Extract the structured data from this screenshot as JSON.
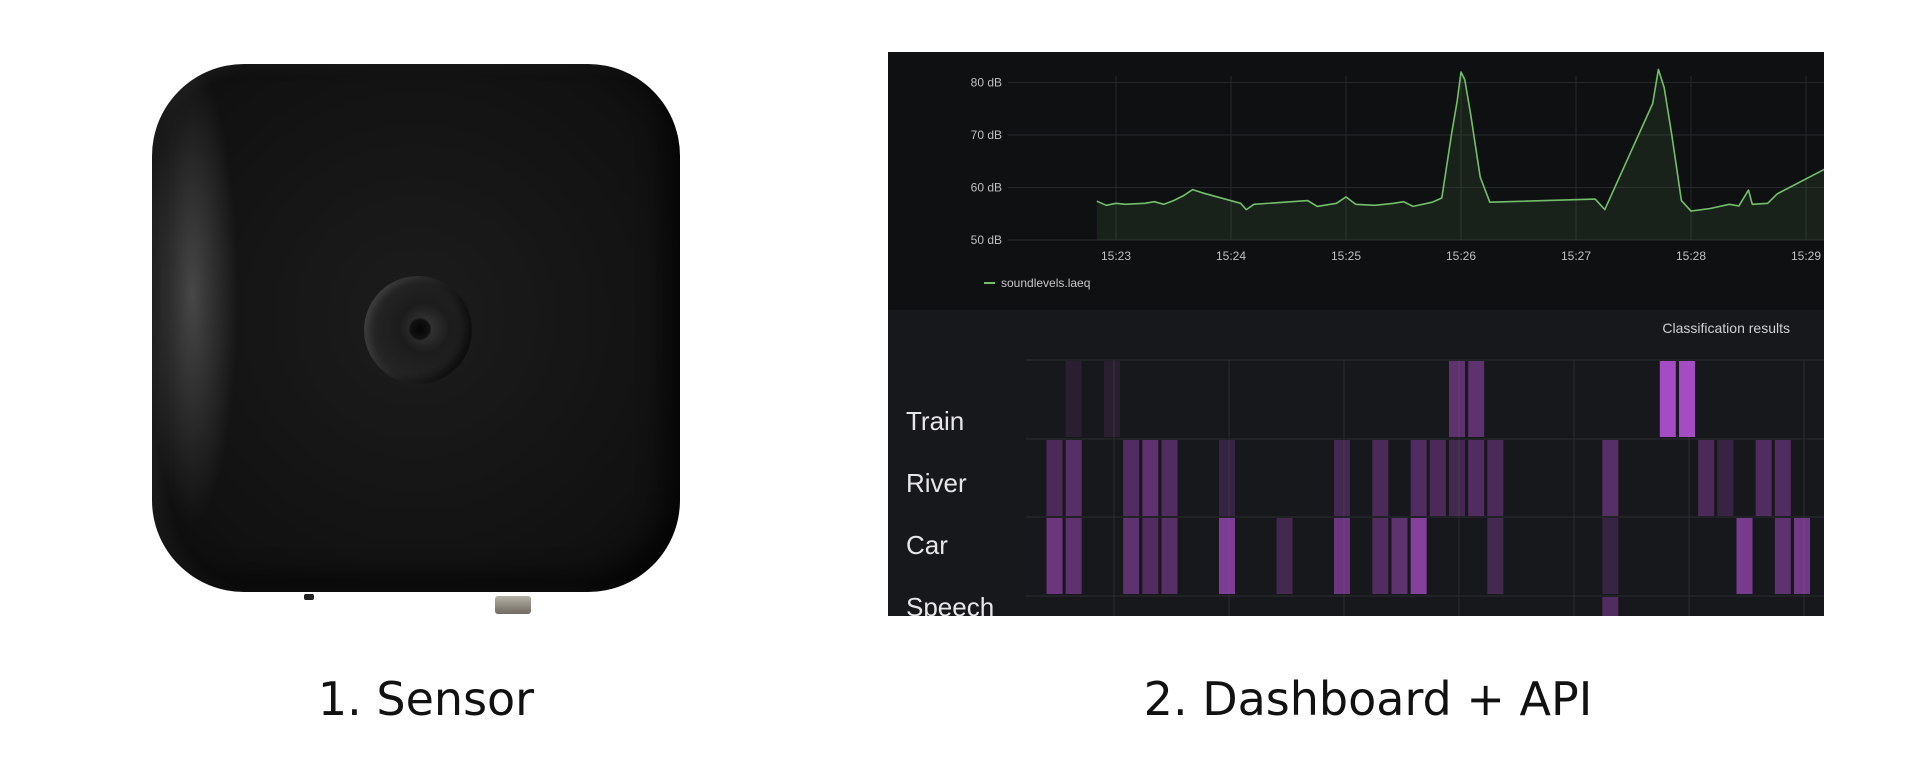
{
  "captions": {
    "sensor": "1. Sensor",
    "dashboard": "2. Dashboard + API"
  },
  "chart_data": [
    {
      "type": "area",
      "x_ticks": [
        "15:23",
        "15:24",
        "15:25",
        "15:26",
        "15:27",
        "15:28",
        "15:29"
      ],
      "y_ticks": [
        "50 dB",
        "60 dB",
        "70 dB",
        "80 dB"
      ],
      "ylim": [
        50,
        82
      ],
      "grid": true,
      "legend": "bottom-left",
      "series": [
        {
          "name": "soundlevels.laeq",
          "color": "#73bf69",
          "points": [
            [
              "15:22:50",
              57.4
            ],
            [
              "15:22:55",
              56.6
            ],
            [
              "15:23:00",
              57.0
            ],
            [
              "15:23:05",
              56.8
            ],
            [
              "15:23:15",
              57.0
            ],
            [
              "15:23:20",
              57.3
            ],
            [
              "15:23:25",
              56.8
            ],
            [
              "15:23:30",
              57.5
            ],
            [
              "15:23:35",
              58.4
            ],
            [
              "15:23:40",
              59.6
            ],
            [
              "15:23:45",
              59.0
            ],
            [
              "15:24:05",
              57.0
            ],
            [
              "15:24:08",
              55.8
            ],
            [
              "15:24:12",
              56.8
            ],
            [
              "15:24:40",
              57.5
            ],
            [
              "15:24:45",
              56.4
            ],
            [
              "15:24:55",
              57.0
            ],
            [
              "15:25:00",
              58.2
            ],
            [
              "15:25:05",
              56.8
            ],
            [
              "15:25:15",
              56.6
            ],
            [
              "15:25:25",
              57.0
            ],
            [
              "15:25:30",
              57.3
            ],
            [
              "15:25:35",
              56.4
            ],
            [
              "15:25:45",
              57.2
            ],
            [
              "15:25:50",
              58.0
            ],
            [
              "15:25:55",
              70.0
            ],
            [
              "15:25:58",
              76.5
            ],
            [
              "15:26:00",
              82.0
            ],
            [
              "15:26:02",
              80.5
            ],
            [
              "15:26:05",
              74.0
            ],
            [
              "15:26:10",
              62.0
            ],
            [
              "15:26:15",
              57.2
            ],
            [
              "15:27:10",
              57.8
            ],
            [
              "15:27:15",
              55.8
            ],
            [
              "15:27:40",
              76.0
            ],
            [
              "15:27:43",
              82.5
            ],
            [
              "15:27:46",
              79.0
            ],
            [
              "15:27:50",
              70.0
            ],
            [
              "15:27:55",
              57.5
            ],
            [
              "15:28:00",
              55.5
            ],
            [
              "15:28:10",
              56.0
            ],
            [
              "15:28:20",
              56.8
            ],
            [
              "15:28:25",
              56.5
            ],
            [
              "15:28:30",
              59.5
            ],
            [
              "15:28:32",
              56.8
            ],
            [
              "15:28:40",
              57.0
            ],
            [
              "15:28:45",
              58.8
            ],
            [
              "15:29:15",
              64.5
            ]
          ]
        }
      ]
    },
    {
      "type": "heatmap",
      "title": "Classification results",
      "rows": [
        "Train",
        "River",
        "Car",
        "Speech"
      ],
      "color": "#b050d0",
      "cells": [
        {
          "row": "Train",
          "time": "15:22:40",
          "intensity": 0.05
        },
        {
          "row": "Train",
          "time": "15:23:00",
          "intensity": 0.05
        },
        {
          "row": "Train",
          "time": "15:26:00",
          "intensity": 0.45
        },
        {
          "row": "Train",
          "time": "15:26:10",
          "intensity": 0.45
        },
        {
          "row": "Train",
          "time": "15:27:50",
          "intensity": 1.0
        },
        {
          "row": "Train",
          "time": "15:28:00",
          "intensity": 1.0
        },
        {
          "row": "River",
          "time": "15:22:30",
          "intensity": 0.3
        },
        {
          "row": "River",
          "time": "15:22:40",
          "intensity": 0.4
        },
        {
          "row": "River",
          "time": "15:23:10",
          "intensity": 0.35
        },
        {
          "row": "River",
          "time": "15:23:20",
          "intensity": 0.45
        },
        {
          "row": "River",
          "time": "15:23:30",
          "intensity": 0.35
        },
        {
          "row": "River",
          "time": "15:24:00",
          "intensity": 0.15
        },
        {
          "row": "River",
          "time": "15:25:00",
          "intensity": 0.25
        },
        {
          "row": "River",
          "time": "15:25:20",
          "intensity": 0.3
        },
        {
          "row": "River",
          "time": "15:25:40",
          "intensity": 0.35
        },
        {
          "row": "River",
          "time": "15:25:50",
          "intensity": 0.3
        },
        {
          "row": "River",
          "time": "15:26:00",
          "intensity": 0.25
        },
        {
          "row": "River",
          "time": "15:26:10",
          "intensity": 0.35
        },
        {
          "row": "River",
          "time": "15:26:20",
          "intensity": 0.3
        },
        {
          "row": "River",
          "time": "15:27:20",
          "intensity": 0.4
        },
        {
          "row": "River",
          "time": "15:28:10",
          "intensity": 0.3
        },
        {
          "row": "River",
          "time": "15:28:20",
          "intensity": 0.15
        },
        {
          "row": "River",
          "time": "15:28:40",
          "intensity": 0.35
        },
        {
          "row": "River",
          "time": "15:28:50",
          "intensity": 0.35
        },
        {
          "row": "Car",
          "time": "15:22:30",
          "intensity": 0.55
        },
        {
          "row": "Car",
          "time": "15:22:40",
          "intensity": 0.45
        },
        {
          "row": "Car",
          "time": "15:23:10",
          "intensity": 0.45
        },
        {
          "row": "Car",
          "time": "15:23:20",
          "intensity": 0.35
        },
        {
          "row": "Car",
          "time": "15:23:30",
          "intensity": 0.4
        },
        {
          "row": "Car",
          "time": "15:24:00",
          "intensity": 0.7
        },
        {
          "row": "Car",
          "time": "15:24:30",
          "intensity": 0.25
        },
        {
          "row": "Car",
          "time": "15:25:00",
          "intensity": 0.55
        },
        {
          "row": "Car",
          "time": "15:25:20",
          "intensity": 0.35
        },
        {
          "row": "Car",
          "time": "15:25:30",
          "intensity": 0.45
        },
        {
          "row": "Car",
          "time": "15:25:40",
          "intensity": 0.75
        },
        {
          "row": "Car",
          "time": "15:26:20",
          "intensity": 0.25
        },
        {
          "row": "Car",
          "time": "15:27:20",
          "intensity": 0.15
        },
        {
          "row": "Car",
          "time": "15:28:30",
          "intensity": 0.65
        },
        {
          "row": "Car",
          "time": "15:28:50",
          "intensity": 0.45
        },
        {
          "row": "Car",
          "time": "15:29:00",
          "intensity": 0.6
        },
        {
          "row": "Speech",
          "time": "15:27:20",
          "intensity": 0.35
        }
      ]
    }
  ]
}
